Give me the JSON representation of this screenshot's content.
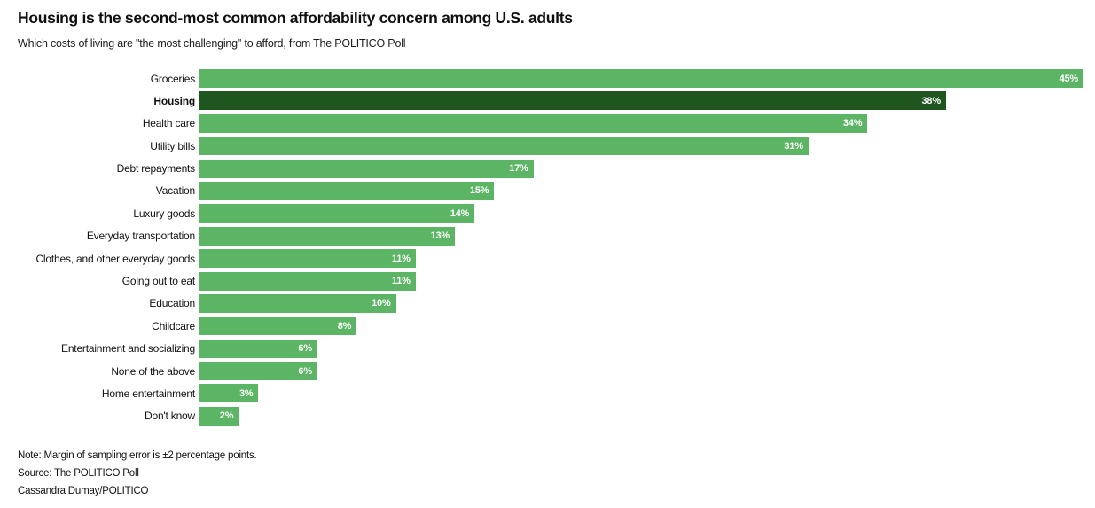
{
  "header": {
    "title": "Housing is the second-most common affordability concern among U.S. adults",
    "subtitle": "Which costs of living are \"the most challenging\" to afford, from The POLITICO Poll"
  },
  "chart_data": {
    "type": "bar",
    "orientation": "horizontal",
    "categories": [
      "Groceries",
      "Housing",
      "Health care",
      "Utility bills",
      "Debt repayments",
      "Vacation",
      "Luxury goods",
      "Everyday transportation",
      "Clothes, and other everyday goods",
      "Going out to eat",
      "Education",
      "Childcare",
      "Entertainment and socializing",
      "None of the above",
      "Home entertainment",
      "Don't know"
    ],
    "values": [
      45,
      38,
      34,
      31,
      17,
      15,
      14,
      13,
      11,
      11,
      10,
      8,
      6,
      6,
      3,
      2
    ],
    "value_suffix": "%",
    "xlim": [
      0,
      45
    ],
    "highlight_category": "Housing",
    "colors": {
      "bar": "#5cb564",
      "highlight_bar": "#1f5620",
      "value_label": "#ffffff"
    },
    "value_labels_inside": true,
    "grid": false,
    "legend": false
  },
  "footer": {
    "note": "Note: Margin of sampling error is ±2 percentage points.",
    "source": "Source: The POLITICO Poll",
    "credit": "Cassandra Dumay/POLITICO"
  }
}
